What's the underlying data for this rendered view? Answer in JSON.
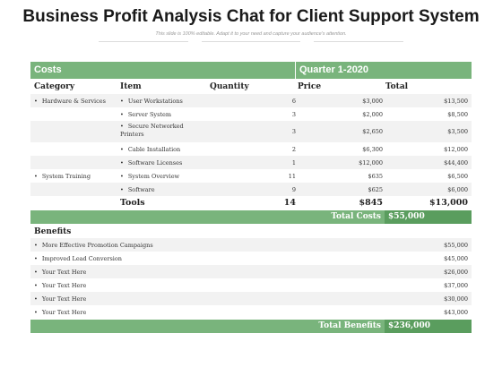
{
  "title": "Business Profit Analysis Chat for Client Support System",
  "subtitle": "This slide is 100% editable. Adapt it to your need and capture your audience's attention.",
  "header": {
    "costs": "Costs",
    "quarter": "Quarter 1-2020"
  },
  "columns": {
    "category": "Category",
    "item": "Item",
    "quantity": "Quantity",
    "price": "Price",
    "total": "Total"
  },
  "cost_rows": [
    {
      "category": "Hardware & Services",
      "item": "User Workstations",
      "quantity": "6",
      "price": "$3,000",
      "total": "$13,500"
    },
    {
      "category": "",
      "item": "Server System",
      "quantity": "3",
      "price": "$2,000",
      "total": "$8,500"
    },
    {
      "category": "",
      "item": "Secure Networked Printers",
      "quantity": "3",
      "price": "$2,650",
      "total": "$3,500"
    },
    {
      "category": "",
      "item": "Cable Installation",
      "quantity": "2",
      "price": "$6,300",
      "total": "$12,000"
    },
    {
      "category": "",
      "item": "Software Licenses",
      "quantity": "1",
      "price": "$12,000",
      "total": "$44,400"
    },
    {
      "category": "System Training",
      "item": "System Overview",
      "quantity": "11",
      "price": "$635",
      "total": "$6,500"
    },
    {
      "category": "",
      "item": "Software",
      "quantity": "9",
      "price": "$625",
      "total": "$6,000"
    }
  ],
  "tools": {
    "label": "Tools",
    "quantity": "14",
    "price": "$845",
    "total": "$13,000"
  },
  "total_costs": {
    "label": "Total Costs",
    "value": "$55,000"
  },
  "benefits": {
    "heading": "Benefits",
    "rows": [
      {
        "label": "More Effective Promotion Campaigns",
        "value": "$55,000"
      },
      {
        "label": "Improved Lead Conversion",
        "value": "$45,000"
      },
      {
        "label": "Your Text Here",
        "value": "$26,000"
      },
      {
        "label": "Your Text Here",
        "value": "$37,000"
      },
      {
        "label": "Your Text Here",
        "value": "$30,000"
      },
      {
        "label": "Your Text Here",
        "value": "$43,000"
      }
    ]
  },
  "total_benefits": {
    "label": "Total Benefits",
    "value": "$236,000"
  },
  "colors": {
    "accent": "#79b47c",
    "accent_dark": "#5a9d5e",
    "stripe": "#f2f2f2"
  }
}
